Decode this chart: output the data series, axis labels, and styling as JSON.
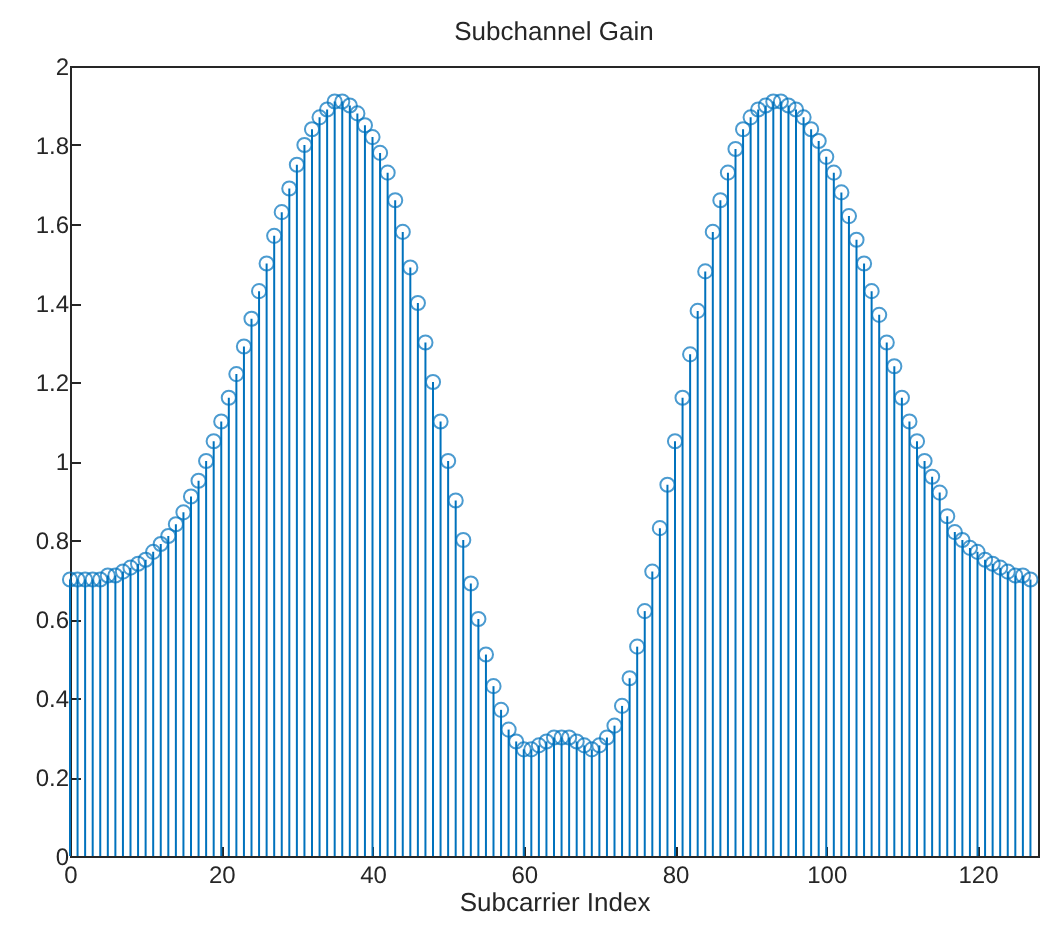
{
  "chart_data": {
    "type": "lollipop",
    "title": "Subchannel Gain",
    "xlabel": "Subcarrier Index",
    "x": [
      0,
      1,
      2,
      3,
      4,
      5,
      6,
      7,
      8,
      9,
      10,
      11,
      12,
      13,
      14,
      15,
      16,
      17,
      18,
      19,
      20,
      21,
      22,
      23,
      24,
      25,
      26,
      27,
      28,
      29,
      30,
      31,
      32,
      33,
      34,
      35,
      36,
      37,
      38,
      39,
      40,
      41,
      42,
      43,
      44,
      45,
      46,
      47,
      48,
      49,
      50,
      51,
      52,
      53,
      54,
      55,
      56,
      57,
      58,
      59,
      60,
      61,
      62,
      63,
      64,
      65,
      66,
      67,
      68,
      69,
      70,
      71,
      72,
      73,
      74,
      75,
      76,
      77,
      78,
      79,
      80,
      81,
      82,
      83,
      84,
      85,
      86,
      87,
      88,
      89,
      90,
      91,
      92,
      93,
      94,
      95,
      96,
      97,
      98,
      99,
      100,
      101,
      102,
      103,
      104,
      105,
      106,
      107,
      108,
      109,
      110,
      111,
      112,
      113,
      114,
      115,
      116,
      117,
      118,
      119,
      120,
      121,
      122,
      123,
      124,
      125,
      126,
      127
    ],
    "series": [
      {
        "color": "#0072bd",
        "values": [
          0.7,
          0.7,
          0.7,
          0.7,
          0.7,
          0.71,
          0.71,
          0.72,
          0.73,
          0.74,
          0.75,
          0.77,
          0.79,
          0.81,
          0.84,
          0.87,
          0.91,
          0.95,
          1.0,
          1.05,
          1.1,
          1.16,
          1.22,
          1.29,
          1.36,
          1.43,
          1.5,
          1.57,
          1.63,
          1.69,
          1.75,
          1.8,
          1.84,
          1.87,
          1.89,
          1.91,
          1.91,
          1.9,
          1.88,
          1.85,
          1.82,
          1.78,
          1.73,
          1.66,
          1.58,
          1.49,
          1.4,
          1.3,
          1.2,
          1.1,
          1.0,
          0.9,
          0.8,
          0.69,
          0.6,
          0.51,
          0.43,
          0.37,
          0.32,
          0.29,
          0.27,
          0.27,
          0.28,
          0.29,
          0.3,
          0.3,
          0.3,
          0.29,
          0.28,
          0.27,
          0.28,
          0.3,
          0.33,
          0.38,
          0.45,
          0.53,
          0.62,
          0.72,
          0.83,
          0.94,
          1.05,
          1.16,
          1.27,
          1.38,
          1.48,
          1.58,
          1.66,
          1.73,
          1.79,
          1.84,
          1.87,
          1.89,
          1.9,
          1.91,
          1.91,
          1.9,
          1.89,
          1.87,
          1.84,
          1.81,
          1.77,
          1.73,
          1.68,
          1.62,
          1.56,
          1.5,
          1.43,
          1.37,
          1.3,
          1.24,
          1.16,
          1.1,
          1.05,
          1.0,
          0.96,
          0.92,
          0.86,
          0.82,
          0.8,
          0.78,
          0.77,
          0.75,
          0.74,
          0.73,
          0.72,
          0.71,
          0.71,
          0.7
        ]
      }
    ],
    "xlim": [
      0,
      128
    ],
    "xticks": [
      0,
      20,
      40,
      60,
      80,
      100,
      120
    ],
    "ylim": [
      0,
      2
    ],
    "yticks": [
      0,
      0.2,
      0.4,
      0.6,
      0.8,
      1,
      1.2,
      1.4,
      1.6,
      1.8,
      2
    ],
    "marker": "circle"
  }
}
